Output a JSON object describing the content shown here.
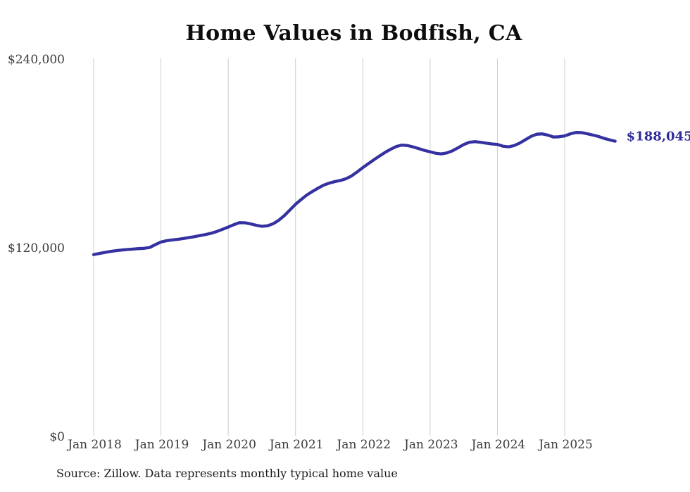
{
  "page": {
    "title": "Home Values in Bodfish, CA",
    "source_note": "Source: Zillow. Data represents monthly typical home value"
  },
  "colors": {
    "background": "#ffffff",
    "line": "#3531a0",
    "end_label": "#2f2b99",
    "gridline": "#cccccc",
    "title_text": "#0d0d0d",
    "tick_label": "#3b3b3b",
    "source_text": "#1c1c1c"
  },
  "chart_data": {
    "type": "line",
    "title": "Home Values in Bodfish, CA",
    "unit": "USD",
    "series_name": "Typical home value",
    "x": [
      "2018-01",
      "2018-02",
      "2018-03",
      "2018-04",
      "2018-05",
      "2018-06",
      "2018-07",
      "2018-08",
      "2018-09",
      "2018-10",
      "2018-11",
      "2018-12",
      "2019-01",
      "2019-02",
      "2019-03",
      "2019-04",
      "2019-05",
      "2019-06",
      "2019-07",
      "2019-08",
      "2019-09",
      "2019-10",
      "2019-11",
      "2019-12",
      "2020-01",
      "2020-02",
      "2020-03",
      "2020-04",
      "2020-05",
      "2020-06",
      "2020-07",
      "2020-08",
      "2020-09",
      "2020-10",
      "2020-11",
      "2020-12",
      "2021-01",
      "2021-02",
      "2021-03",
      "2021-04",
      "2021-05",
      "2021-06",
      "2021-07",
      "2021-08",
      "2021-09",
      "2021-10",
      "2021-11",
      "2021-12",
      "2022-01",
      "2022-02",
      "2022-03",
      "2022-04",
      "2022-05",
      "2022-06",
      "2022-07",
      "2022-08",
      "2022-09",
      "2022-10",
      "2022-11",
      "2022-12",
      "2023-01",
      "2023-02",
      "2023-03",
      "2023-04",
      "2023-05",
      "2023-06",
      "2023-07",
      "2023-08",
      "2023-09",
      "2023-10",
      "2023-11",
      "2023-12",
      "2024-01",
      "2024-02",
      "2024-03",
      "2024-04",
      "2024-05",
      "2024-06",
      "2024-07",
      "2024-08",
      "2024-09",
      "2024-10",
      "2024-11",
      "2024-12",
      "2025-01",
      "2025-02",
      "2025-03",
      "2025-04",
      "2025-05",
      "2025-06",
      "2025-07",
      "2025-08",
      "2025-09",
      "2025-10"
    ],
    "values": [
      116000,
      116700,
      117400,
      118000,
      118500,
      118900,
      119200,
      119500,
      119800,
      120000,
      120500,
      122300,
      124000,
      124800,
      125300,
      125700,
      126200,
      126800,
      127400,
      128100,
      128800,
      129600,
      130700,
      132100,
      133500,
      135000,
      136300,
      136200,
      135500,
      134600,
      134000,
      134300,
      135600,
      137800,
      140800,
      144300,
      148000,
      151000,
      153800,
      156100,
      158200,
      160100,
      161400,
      162400,
      163100,
      164200,
      166000,
      168500,
      171300,
      173800,
      176300,
      178700,
      181000,
      183000,
      184700,
      185600,
      185300,
      184400,
      183300,
      182200,
      181300,
      180400,
      180000,
      180600,
      182000,
      183900,
      185900,
      187400,
      187800,
      187400,
      186800,
      186300,
      186000,
      184900,
      184500,
      185300,
      186900,
      189000,
      191100,
      192500,
      192700,
      191900,
      190700,
      190900,
      191400,
      192700,
      193600,
      193500,
      192800,
      192000,
      191100,
      189900,
      188900,
      188045
    ],
    "x_tick_labels": [
      "Jan 2018",
      "Jan 2019",
      "Jan 2020",
      "Jan 2021",
      "Jan 2022",
      "Jan 2023",
      "Jan 2024",
      "Jan 2025"
    ],
    "y_ticks": [
      240000,
      120000,
      0
    ],
    "y_tick_labels": [
      "$240,000",
      "$120,000",
      "$0"
    ],
    "ylim": [
      0,
      240000
    ],
    "grid": "vertical-only",
    "legend": "none",
    "end_label": "$188,045",
    "final_value": 188045,
    "source": "Source: Zillow. Data represents monthly typical home value"
  }
}
